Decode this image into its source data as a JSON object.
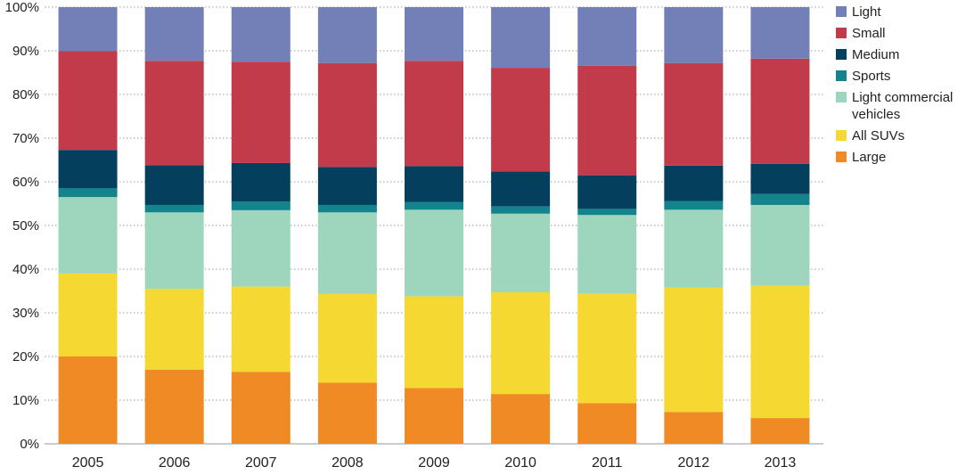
{
  "chart_data": {
    "type": "bar",
    "stacked": true,
    "percent_scale": true,
    "categories": [
      "2005",
      "2006",
      "2007",
      "2008",
      "2009",
      "2010",
      "2011",
      "2012",
      "2013"
    ],
    "series": [
      {
        "name": "Large",
        "color": "#f08a24",
        "values": [
          20,
          17,
          16.5,
          14,
          12.8,
          11.4,
          9.3,
          7.3,
          5.9
        ]
      },
      {
        "name": "All SUVs",
        "color": "#f5d832",
        "values": [
          19,
          18.5,
          19.5,
          20.3,
          21,
          23.3,
          25.1,
          28.5,
          30.3
        ]
      },
      {
        "name": "Light commercial vehicles",
        "color": "#9ed6bd",
        "values": [
          17.5,
          17.5,
          17.5,
          18.7,
          19.8,
          18,
          18,
          17.8,
          18.5
        ]
      },
      {
        "name": "Sports",
        "color": "#13848c",
        "values": [
          2,
          1.7,
          2,
          1.7,
          1.8,
          1.7,
          1.4,
          2,
          2.5
        ]
      },
      {
        "name": "Medium",
        "color": "#053f5e",
        "values": [
          8.8,
          9.1,
          8.8,
          8.7,
          8.2,
          8,
          7.7,
          8.1,
          6.9
        ]
      },
      {
        "name": "Small",
        "color": "#c23b4b",
        "values": [
          22.6,
          23.9,
          23.2,
          23.8,
          24.1,
          23.7,
          25.1,
          23.5,
          24.1
        ]
      },
      {
        "name": "Light",
        "color": "#7380b8",
        "values": [
          10.1,
          12.3,
          12.5,
          12.8,
          12.3,
          13.9,
          13.4,
          12.8,
          11.8
        ]
      }
    ],
    "yticks": [
      "0%",
      "10%",
      "20%",
      "30%",
      "40%",
      "50%",
      "60%",
      "70%",
      "80%",
      "90%",
      "100%"
    ],
    "ylim": [
      0,
      100
    ],
    "grid": true,
    "legend_position": "right",
    "legend_order": [
      "Light",
      "Small",
      "Medium",
      "Sports",
      "Light commercial vehicles",
      "All SUVs",
      "Large"
    ]
  }
}
